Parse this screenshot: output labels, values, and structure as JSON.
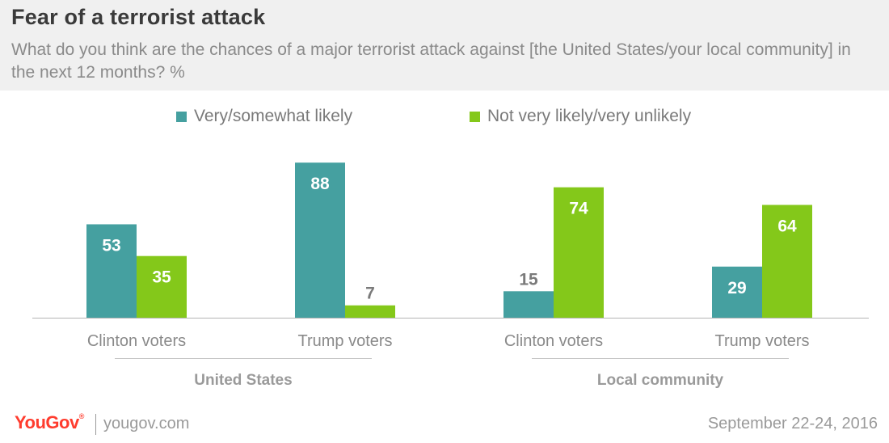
{
  "header": {
    "title": "Fear of a terrorist attack",
    "subtitle": "What do you think are the chances of a major terrorist attack against [the United States/your local community] in the next 12 months? %"
  },
  "colors": {
    "likely": "#45a0a0",
    "unlikely": "#84c81a",
    "brand": "#ff3c2e"
  },
  "chart_data": {
    "type": "bar",
    "title": "Fear of a terrorist attack",
    "ylim": [
      0,
      100
    ],
    "grid": false,
    "legend_placement": "top",
    "groups": [
      {
        "name": "United States",
        "categories": [
          "Clinton voters",
          "Trump voters"
        ]
      },
      {
        "name": "Local community",
        "categories": [
          "Clinton voters",
          "Trump voters"
        ]
      }
    ],
    "categories": [
      "Clinton voters",
      "Trump voters",
      "Clinton voters",
      "Trump voters"
    ],
    "series": [
      {
        "name": "Very/somewhat likely",
        "color": "#45a0a0",
        "values": [
          53,
          88,
          15,
          29
        ]
      },
      {
        "name": "Not very likely/very unlikely",
        "color": "#84c81a",
        "values": [
          35,
          7,
          74,
          64
        ]
      }
    ]
  },
  "footer": {
    "logo": "YouGov",
    "logo_mark": "®",
    "site": "yougov.com",
    "date": "September 22-24, 2016"
  }
}
